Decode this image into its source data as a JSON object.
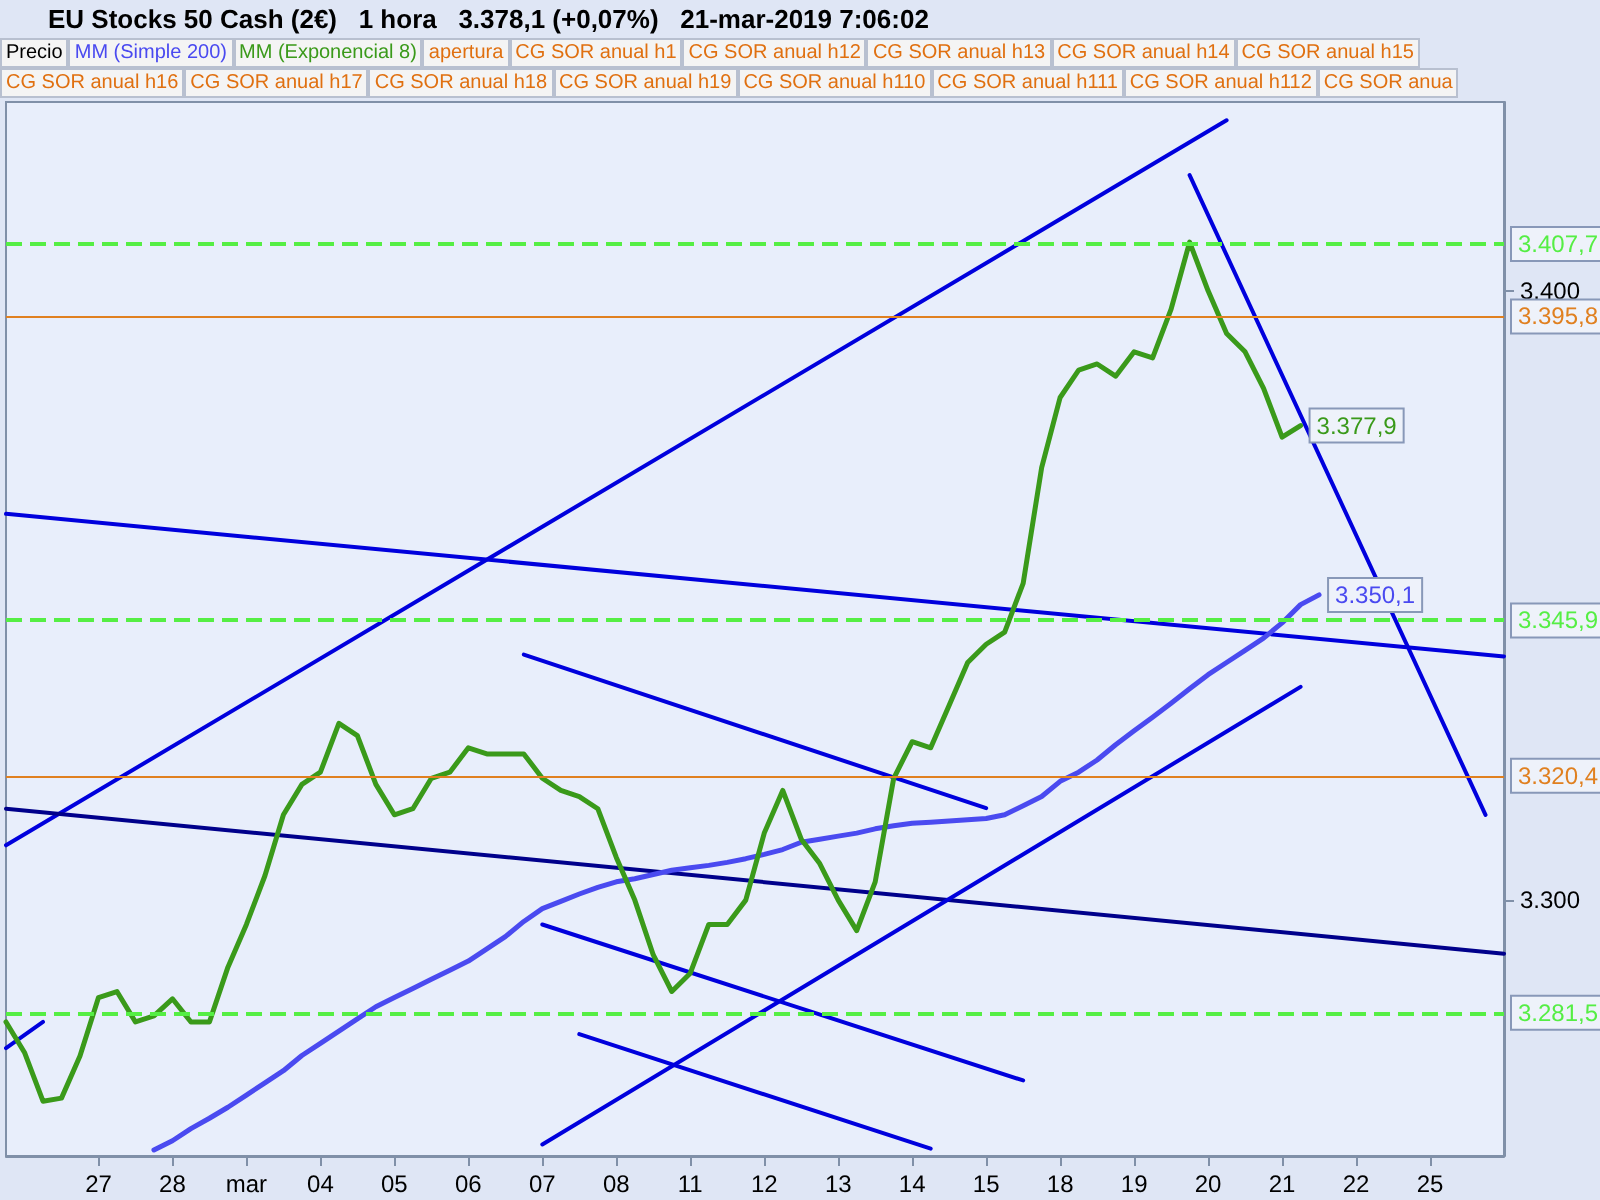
{
  "chart_data": {
    "type": "line",
    "title": "EU Stocks 50 Cash (2€)   1 hora   3.378,1 (+0,07%)   21-mar-2019 7:06:02",
    "annotations": [
      "Precio",
      "apertura",
      "CG SOR anual h1",
      "CG SOR anual h12",
      "CG SOR anual h13",
      "CG SOR anual h14",
      "CG SOR anual h15",
      "CG SOR anual h16",
      "CG SOR anual h17",
      "CG SOR anual h18",
      "CG SOR anual h19",
      "CG SOR anual h110",
      "CG SOR anual h111",
      "CG SOR anual h112",
      "CG SOR anua"
    ],
    "legend": "top",
    "grid": false,
    "marker": "none",
    "categories": [
      null,
      null,
      null,
      null,
      null,
      "27",
      null,
      null,
      null,
      "28",
      null,
      null,
      null,
      "mar",
      null,
      null,
      null,
      "04",
      null,
      null,
      null,
      "05",
      null,
      null,
      null,
      "06",
      null,
      null,
      null,
      "07",
      null,
      null,
      null,
      "08",
      null,
      null,
      null,
      "11",
      null,
      null,
      null,
      "12",
      null,
      null,
      null,
      "13",
      null,
      null,
      null,
      "14",
      null,
      null,
      null,
      "15",
      null,
      null,
      null,
      "18",
      null,
      null,
      null,
      "19",
      null,
      null,
      null,
      "20",
      null,
      null,
      null,
      "21",
      null,
      null,
      null,
      "22",
      null,
      null,
      null,
      "25",
      null,
      null,
      null,
      null
    ],
    "ylim": [
      3258,
      3431
    ],
    "yticks": [
      {
        "value": 3300,
        "label": "3.300"
      },
      {
        "value": 3400,
        "label": "3.400"
      }
    ],
    "ref_lines": [
      {
        "axis": "y",
        "value": 3407.7,
        "label": "3.407,7",
        "color": "#55ee44",
        "line_style": "dashed"
      },
      {
        "axis": "y",
        "value": 3395.8,
        "label": "3.395,8",
        "color": "#e08020",
        "line_style": "solid"
      },
      {
        "axis": "y",
        "value": 3345.9,
        "label": "3.345,9",
        "color": "#55ee44",
        "line_style": "dashed"
      },
      {
        "axis": "y",
        "value": 3320.4,
        "label": "3.320,4",
        "color": "#e08020",
        "line_style": "solid"
      },
      {
        "axis": "y",
        "value": 3281.5,
        "label": "3.281,5",
        "color": "#55ee44",
        "line_style": "dashed"
      }
    ],
    "series": [
      {
        "name": "MM (Simple 200)",
        "color": "#4a4af0",
        "values": [
          null,
          null,
          null,
          null,
          null,
          null,
          null,
          null,
          3259,
          3260.5,
          3262.5,
          3264.2,
          3266,
          3268,
          3270,
          3272,
          3274.5,
          3276.5,
          3278.5,
          3280.5,
          3282.5,
          3284,
          3285.5,
          3287,
          3288.5,
          3290,
          3292,
          3294,
          3296.5,
          3298.6,
          3299.8,
          3301,
          3302.1,
          3303,
          3303.5,
          3304.2,
          3304.9,
          3305.3,
          3305.7,
          3306.2,
          3306.8,
          3307.5,
          3308.3,
          3309.5,
          3310,
          3310.5,
          3311,
          3311.7,
          3312.2,
          3312.6,
          3312.8,
          3313,
          3313.2,
          3313.4,
          3314,
          3315.5,
          3317,
          3319.5,
          3321,
          3323,
          3325.5,
          3327.8,
          3330,
          3332.3,
          3334.7,
          3337,
          3339,
          3341,
          3343,
          3345.5,
          3348.5,
          3350.1,
          null,
          null,
          null,
          null,
          null,
          null,
          null,
          null,
          null,
          null
        ],
        "value_labels": [
          null,
          null,
          null,
          null,
          null,
          null,
          null,
          null,
          null,
          null,
          null,
          null,
          null,
          null,
          null,
          null,
          null,
          null,
          null,
          null,
          null,
          null,
          null,
          null,
          null,
          null,
          null,
          null,
          null,
          null,
          null,
          null,
          null,
          null,
          null,
          null,
          null,
          null,
          null,
          null,
          null,
          null,
          null,
          null,
          null,
          null,
          null,
          null,
          null,
          null,
          null,
          null,
          null,
          null,
          null,
          null,
          null,
          null,
          null,
          null,
          null,
          null,
          null,
          null,
          null,
          null,
          null,
          null,
          null,
          null,
          null,
          "3.350,1",
          null,
          null,
          null,
          null,
          null,
          null,
          null,
          null,
          null,
          null
        ]
      },
      {
        "name": "MM (Exponencial 8)",
        "color": "#3a9a1a",
        "values": [
          3280,
          3275,
          3267,
          3267.5,
          3274.4,
          3284,
          3285,
          3280,
          3281,
          3283.8,
          3280,
          3280,
          3289,
          3296,
          3304,
          3314,
          3319,
          3321,
          3329,
          3327,
          3319,
          3314,
          3315,
          3320,
          3321,
          3325,
          3324,
          3324,
          3324,
          3320,
          3318,
          3317,
          3315,
          3307,
          3300,
          3291,
          3285,
          3288,
          3296,
          3296,
          3300,
          3311,
          3318,
          3310,
          3306,
          3300,
          3295,
          3303,
          3320,
          3326,
          3325,
          3332,
          3339,
          3342,
          3344,
          3352,
          3371,
          3382.5,
          3387,
          3388,
          3386,
          3390,
          3389,
          3397,
          3408,
          3400,
          3393,
          3390,
          3384,
          3376,
          3377.9,
          null,
          null,
          null,
          null,
          null,
          null,
          null,
          null,
          null,
          null,
          null
        ],
        "value_labels": [
          null,
          null,
          null,
          null,
          null,
          null,
          null,
          null,
          null,
          null,
          null,
          null,
          null,
          null,
          null,
          null,
          null,
          null,
          null,
          null,
          null,
          null,
          null,
          null,
          null,
          null,
          null,
          null,
          null,
          null,
          null,
          null,
          null,
          null,
          null,
          null,
          null,
          null,
          null,
          null,
          null,
          null,
          null,
          null,
          null,
          null,
          null,
          null,
          null,
          null,
          null,
          null,
          null,
          null,
          null,
          null,
          null,
          null,
          null,
          null,
          null,
          null,
          null,
          null,
          null,
          null,
          null,
          null,
          null,
          null,
          "3.377,9",
          null,
          null,
          null,
          null,
          null,
          null,
          null,
          null,
          null,
          null,
          null
        ]
      },
      {
        "color": "#0000dd",
        "values": [
          3309,
          null,
          null,
          null,
          null,
          null,
          null,
          null,
          null,
          null,
          null,
          null,
          null,
          null,
          null,
          null,
          null,
          null,
          null,
          null,
          null,
          null,
          null,
          null,
          null,
          null,
          null,
          null,
          null,
          null,
          null,
          null,
          null,
          null,
          null,
          null,
          null,
          null,
          null,
          null,
          null,
          null,
          null,
          null,
          null,
          null,
          null,
          null,
          null,
          null,
          null,
          null,
          null,
          null,
          null,
          null,
          null,
          null,
          null,
          null,
          null,
          null,
          null,
          null,
          null,
          null,
          3428,
          null,
          null,
          null,
          null,
          null,
          null,
          null,
          null,
          null,
          null,
          null,
          null,
          null,
          null,
          null
        ]
      },
      {
        "color": "#0000dd",
        "values": [
          3363.4,
          null,
          null,
          null,
          null,
          null,
          null,
          null,
          null,
          null,
          null,
          null,
          null,
          null,
          null,
          null,
          null,
          null,
          null,
          null,
          null,
          null,
          null,
          null,
          null,
          null,
          null,
          null,
          null,
          null,
          null,
          null,
          null,
          null,
          null,
          null,
          null,
          null,
          null,
          null,
          null,
          null,
          null,
          null,
          null,
          null,
          null,
          null,
          null,
          null,
          null,
          null,
          null,
          null,
          null,
          null,
          null,
          null,
          null,
          null,
          null,
          null,
          null,
          null,
          null,
          null,
          null,
          null,
          null,
          null,
          null,
          null,
          null,
          null,
          null,
          null,
          null,
          null,
          null,
          null,
          null,
          3340
        ]
      },
      {
        "color": "#00008b",
        "values": [
          3315,
          null,
          null,
          null,
          null,
          null,
          null,
          null,
          null,
          null,
          null,
          null,
          null,
          null,
          null,
          null,
          null,
          null,
          null,
          null,
          null,
          null,
          null,
          null,
          null,
          null,
          null,
          null,
          null,
          null,
          null,
          null,
          null,
          null,
          null,
          null,
          null,
          null,
          null,
          null,
          null,
          null,
          null,
          null,
          null,
          null,
          null,
          null,
          null,
          null,
          null,
          null,
          null,
          null,
          null,
          null,
          null,
          null,
          null,
          null,
          null,
          null,
          null,
          null,
          null,
          null,
          null,
          null,
          null,
          null,
          null,
          null,
          null,
          null,
          null,
          null,
          null,
          null,
          null,
          null,
          null,
          3291.2
        ]
      },
      {
        "color": "#0000dd",
        "values": [
          null,
          null,
          null,
          null,
          null,
          null,
          null,
          null,
          null,
          null,
          null,
          null,
          null,
          null,
          null,
          null,
          null,
          null,
          null,
          null,
          null,
          null,
          null,
          null,
          null,
          null,
          null,
          null,
          3340.3,
          null,
          null,
          null,
          null,
          null,
          null,
          null,
          null,
          null,
          null,
          null,
          null,
          null,
          null,
          null,
          null,
          null,
          null,
          null,
          null,
          null,
          null,
          null,
          null,
          3315.1,
          null,
          null,
          null,
          null,
          null,
          null,
          null,
          null,
          null,
          null,
          null,
          null,
          null,
          null,
          null,
          null,
          null,
          null,
          null,
          null,
          null,
          null,
          null,
          null,
          null,
          null,
          null,
          null
        ]
      },
      {
        "color": "#0000dd",
        "values": [
          null,
          null,
          null,
          null,
          null,
          null,
          null,
          null,
          null,
          null,
          null,
          null,
          null,
          null,
          null,
          null,
          null,
          null,
          null,
          null,
          null,
          null,
          null,
          null,
          null,
          null,
          null,
          null,
          null,
          3296,
          null,
          null,
          null,
          null,
          null,
          null,
          null,
          null,
          null,
          null,
          null,
          null,
          null,
          null,
          null,
          null,
          null,
          null,
          null,
          null,
          null,
          null,
          null,
          null,
          null,
          3270.4,
          null,
          null,
          null,
          null,
          null,
          null,
          null,
          null,
          null,
          null,
          null,
          null,
          null,
          null,
          null,
          null,
          null,
          null,
          null,
          null,
          null,
          null,
          null,
          null,
          null,
          null
        ]
      },
      {
        "color": "#0000dd",
        "values": [
          null,
          null,
          null,
          null,
          null,
          null,
          null,
          null,
          null,
          null,
          null,
          null,
          null,
          null,
          null,
          null,
          null,
          null,
          null,
          null,
          null,
          null,
          null,
          null,
          null,
          null,
          null,
          null,
          null,
          null,
          null,
          3278,
          null,
          null,
          null,
          null,
          null,
          null,
          null,
          null,
          null,
          null,
          null,
          null,
          null,
          null,
          null,
          null,
          null,
          null,
          3259.2,
          null,
          null,
          null,
          null,
          null,
          null,
          null,
          null,
          null,
          null,
          null,
          null,
          null,
          null,
          null,
          null,
          null,
          null,
          null,
          null,
          null,
          null,
          null,
          null,
          null,
          null,
          null,
          null,
          null,
          null,
          null
        ]
      },
      {
        "color": "#0000dd",
        "values": [
          null,
          null,
          null,
          null,
          null,
          null,
          null,
          null,
          null,
          null,
          null,
          null,
          null,
          null,
          null,
          null,
          null,
          null,
          null,
          null,
          null,
          null,
          null,
          null,
          null,
          null,
          null,
          null,
          null,
          3259.9,
          null,
          null,
          null,
          null,
          null,
          null,
          null,
          null,
          null,
          null,
          null,
          null,
          null,
          null,
          null,
          null,
          null,
          null,
          null,
          null,
          null,
          null,
          null,
          null,
          null,
          null,
          null,
          null,
          null,
          null,
          null,
          null,
          null,
          null,
          null,
          null,
          null,
          null,
          null,
          null,
          3335,
          null,
          null,
          null,
          null,
          null,
          null,
          null,
          null,
          null,
          null,
          null
        ]
      },
      {
        "color": "#0000dd",
        "values": [
          null,
          null,
          null,
          null,
          null,
          null,
          null,
          null,
          null,
          null,
          null,
          null,
          null,
          null,
          null,
          null,
          null,
          null,
          null,
          null,
          null,
          null,
          null,
          null,
          null,
          null,
          null,
          null,
          null,
          null,
          null,
          null,
          null,
          null,
          null,
          null,
          null,
          null,
          null,
          null,
          null,
          null,
          null,
          null,
          null,
          null,
          null,
          null,
          null,
          null,
          null,
          null,
          null,
          null,
          null,
          null,
          null,
          null,
          null,
          null,
          null,
          null,
          null,
          null,
          3419,
          null,
          null,
          null,
          null,
          null,
          null,
          null,
          null,
          null,
          null,
          null,
          null,
          null,
          null,
          null,
          3314,
          null
        ]
      },
      {
        "color": "#0000dd",
        "values": [
          3275.7,
          null,
          3280,
          null,
          null,
          null,
          null,
          null,
          null,
          null,
          null,
          null,
          null,
          null,
          null,
          null,
          null,
          null,
          null,
          null,
          null,
          null,
          null,
          null,
          null,
          null,
          null,
          null,
          null,
          null,
          null,
          null,
          null,
          null,
          null,
          null,
          null,
          null,
          null,
          null,
          null,
          null,
          null,
          null,
          null,
          null,
          null,
          null,
          null,
          null,
          null,
          null,
          null,
          null,
          null,
          null,
          null,
          null,
          null,
          null,
          null,
          null,
          null,
          null,
          null,
          null,
          null,
          null,
          null,
          null,
          null,
          null,
          null,
          null,
          null,
          null,
          null,
          null,
          null,
          null,
          null,
          null
        ]
      }
    ]
  }
}
